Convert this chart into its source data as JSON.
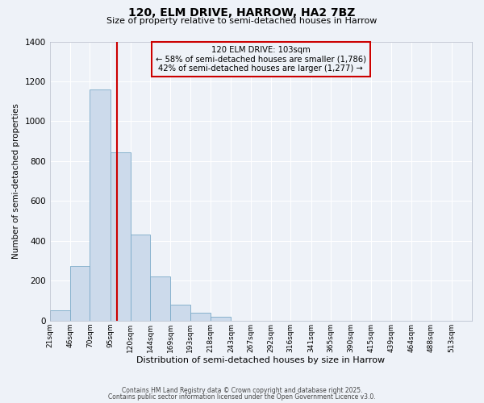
{
  "title": "120, ELM DRIVE, HARROW, HA2 7BZ",
  "subtitle": "Size of property relative to semi-detached houses in Harrow",
  "xlabel": "Distribution of semi-detached houses by size in Harrow",
  "ylabel": "Number of semi-detached properties",
  "bin_labels": [
    "21sqm",
    "46sqm",
    "70sqm",
    "95sqm",
    "120sqm",
    "144sqm",
    "169sqm",
    "193sqm",
    "218sqm",
    "243sqm",
    "267sqm",
    "292sqm",
    "316sqm",
    "341sqm",
    "365sqm",
    "390sqm",
    "415sqm",
    "439sqm",
    "464sqm",
    "488sqm",
    "513sqm"
  ],
  "bin_edges": [
    21,
    46,
    70,
    95,
    120,
    144,
    169,
    193,
    218,
    243,
    267,
    292,
    316,
    341,
    365,
    390,
    415,
    439,
    464,
    488,
    513,
    538
  ],
  "bar_heights": [
    50,
    275,
    1160,
    845,
    430,
    220,
    80,
    40,
    20,
    0,
    0,
    0,
    0,
    0,
    0,
    0,
    0,
    0,
    0,
    0,
    0
  ],
  "bar_color": "#ccdaeb",
  "bar_edge_color": "#7aaac8",
  "property_line_x": 103,
  "property_line_color": "#cc0000",
  "annotation_title": "120 ELM DRIVE: 103sqm",
  "annotation_line1": "← 58% of semi-detached houses are smaller (1,786)",
  "annotation_line2": "42% of semi-detached houses are larger (1,277) →",
  "annotation_box_edgecolor": "#cc0000",
  "ylim": [
    0,
    1400
  ],
  "background_color": "#eef2f8",
  "grid_color": "#ffffff",
  "footer1": "Contains HM Land Registry data © Crown copyright and database right 2025.",
  "footer2": "Contains public sector information licensed under the Open Government Licence v3.0."
}
